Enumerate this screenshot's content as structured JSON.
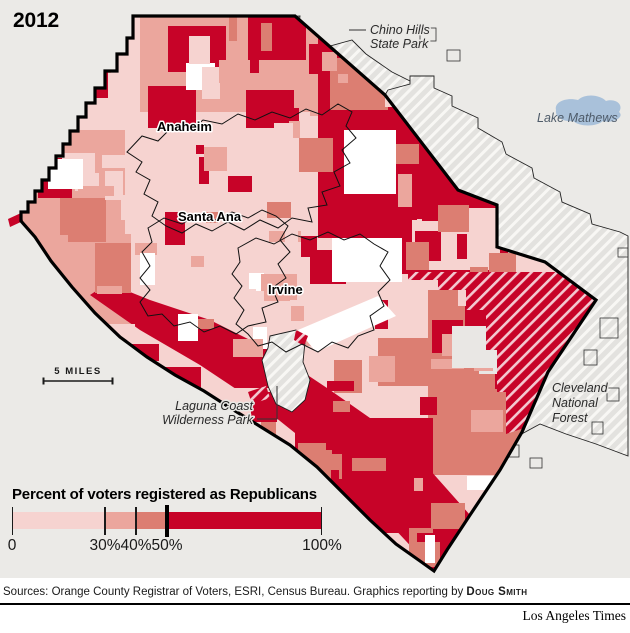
{
  "labels": {
    "year": "2012",
    "anaheim": "Anaheim",
    "santa_ana": "Santa Ana",
    "irvine": "Irvine",
    "chino_1": "Chino Hills",
    "chino_2": "State Park",
    "lake": "Lake Mathews",
    "laguna_1": "Laguna Coast",
    "laguna_2": "Wilderness Park",
    "cleveland_1": "Cleveland",
    "cleveland_2": "National",
    "cleveland_3": "Forest",
    "scale_bar": "5 MILES"
  },
  "legend": {
    "title": "Percent of voters registered as Republicans",
    "tick_labels": [
      "0",
      "30%",
      "40%",
      "50%",
      "100%"
    ],
    "thresholds_percent": [
      0,
      30,
      40,
      50,
      100
    ],
    "segments": [
      {
        "range": "0-30%",
        "color_key": "pink"
      },
      {
        "range": "30-40%",
        "color_key": "light_salmon"
      },
      {
        "range": "40-50%",
        "color_key": "salmon"
      },
      {
        "range": "50-100%",
        "color_key": "crimson"
      }
    ]
  },
  "colors": {
    "pink": "#f6d3d0",
    "light_salmon": "#eba69d",
    "salmon": "#dc7e72",
    "crimson": "#c70328",
    "white_area": "#ffffff",
    "gray_area": "#e9e7e4",
    "background": "#ebeae7",
    "hatch_base": "#e3e2df",
    "hatch_line": "#f8f7f4",
    "lake": "#a9c1da",
    "border": "#000000"
  },
  "footer": {
    "sources_prefix": "Sources: Orange County Registrar of Voters, ESRI, Census Bureau. Graphics reporting by ",
    "credit": "Doug Smith",
    "brand": "Los Angeles Times"
  }
}
